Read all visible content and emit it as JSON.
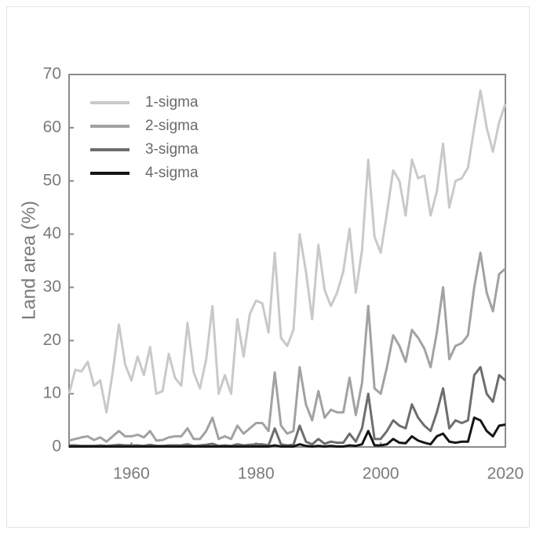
{
  "chart_data": {
    "type": "line",
    "y_label": "Land area (%)",
    "x": [
      1950,
      1951,
      1952,
      1953,
      1954,
      1955,
      1956,
      1957,
      1958,
      1959,
      1960,
      1961,
      1962,
      1963,
      1964,
      1965,
      1966,
      1967,
      1968,
      1969,
      1970,
      1971,
      1972,
      1973,
      1974,
      1975,
      1976,
      1977,
      1978,
      1979,
      1980,
      1981,
      1982,
      1983,
      1984,
      1985,
      1986,
      1987,
      1988,
      1989,
      1990,
      1991,
      1992,
      1993,
      1994,
      1995,
      1996,
      1997,
      1998,
      1999,
      2000,
      2001,
      2002,
      2003,
      2004,
      2005,
      2006,
      2007,
      2008,
      2009,
      2010,
      2011,
      2012,
      2013,
      2014,
      2015,
      2016,
      2017,
      2018,
      2019,
      2020
    ],
    "series": [
      {
        "name": "1-sigma",
        "color": "#c9c9c9",
        "values": [
          10,
          14.5,
          14.2,
          16,
          11.5,
          12.5,
          6.5,
          14,
          23,
          15.5,
          12.5,
          17,
          13.5,
          18.8,
          10,
          10.5,
          17.5,
          13,
          11.5,
          23.3,
          14,
          11,
          16.5,
          26.5,
          10,
          13.5,
          10,
          24,
          17,
          25,
          27.5,
          27,
          21.5,
          36.5,
          20.5,
          19,
          22,
          40,
          33,
          24,
          38,
          29.5,
          26.5,
          29,
          33,
          41,
          29,
          37,
          54,
          39.5,
          36.5,
          44,
          52,
          50,
          43.5,
          54,
          50.5,
          51,
          43.5,
          48,
          57,
          45,
          50,
          50.5,
          52.5,
          60,
          67,
          60,
          55.5,
          61,
          64.5
        ]
      },
      {
        "name": "2-sigma",
        "color": "#a2a2a2",
        "values": [
          1.2,
          1.5,
          1.8,
          2.0,
          1.3,
          1.8,
          1.0,
          2.0,
          3.0,
          2.0,
          2.0,
          2.3,
          1.8,
          3.0,
          1.2,
          1.3,
          1.8,
          2.0,
          2.0,
          3.5,
          1.5,
          1.5,
          3.0,
          5.5,
          1.5,
          2.0,
          1.5,
          4.0,
          2.5,
          3.5,
          4.5,
          4.5,
          3.0,
          14,
          4.0,
          2.5,
          3.0,
          15,
          8,
          5,
          10.5,
          5.5,
          7,
          6.5,
          6.5,
          13,
          6,
          12,
          26.5,
          11,
          10,
          15,
          21,
          19,
          16,
          22,
          20.5,
          18.5,
          15,
          21.5,
          30,
          16.5,
          19,
          19.5,
          21,
          30,
          36.5,
          29,
          25.5,
          32.5,
          33.5
        ]
      },
      {
        "name": "3-sigma",
        "color": "#6e6e6e",
        "values": [
          0.3,
          0.3,
          0.2,
          0.2,
          0.2,
          0.3,
          0.2,
          0.3,
          0.4,
          0.3,
          0.3,
          0.3,
          0.2,
          0.4,
          0.2,
          0.2,
          0.3,
          0.3,
          0.3,
          0.5,
          0.2,
          0.3,
          0.4,
          0.6,
          0.2,
          0.3,
          0.2,
          0.5,
          0.3,
          0.4,
          0.5,
          0.5,
          0.3,
          3.5,
          0.5,
          0.3,
          0.4,
          4,
          1,
          0.5,
          1.5,
          0.6,
          1,
          0.8,
          0.8,
          2.5,
          1,
          3.5,
          10,
          1.5,
          1.5,
          3,
          5,
          4,
          3.5,
          8,
          5.5,
          4,
          3,
          6.5,
          11,
          3.5,
          5,
          4.5,
          5,
          13.5,
          15,
          10,
          8.5,
          13.5,
          12.5
        ]
      },
      {
        "name": "4-sigma",
        "color": "#151515",
        "values": [
          0.1,
          0.1,
          0.1,
          0.1,
          0.1,
          0.1,
          0.1,
          0.1,
          0.1,
          0.1,
          0.1,
          0.1,
          0.1,
          0.1,
          0.1,
          0.1,
          0.1,
          0.1,
          0.1,
          0.1,
          0.1,
          0.1,
          0.1,
          0.1,
          0.1,
          0.1,
          0.1,
          0.1,
          0.1,
          0.1,
          0.1,
          0.1,
          0.1,
          0.3,
          0.1,
          0.1,
          0.1,
          0.5,
          0.2,
          0.1,
          0.2,
          0.1,
          0.2,
          0.1,
          0.1,
          0.3,
          0.2,
          0.5,
          3,
          0.3,
          0.3,
          0.5,
          1.5,
          0.8,
          0.7,
          2,
          1.2,
          0.8,
          0.5,
          2,
          2.5,
          1,
          0.8,
          1,
          1,
          5.5,
          5,
          3,
          2,
          4,
          4.2
        ]
      }
    ],
    "xlim": [
      1950,
      2020
    ],
    "xticks": [
      1960,
      1980,
      2000,
      2020
    ],
    "ylim": [
      0,
      70
    ],
    "yticks": [
      0,
      10,
      20,
      30,
      40,
      50,
      60,
      70
    ],
    "legend": "upper left"
  }
}
